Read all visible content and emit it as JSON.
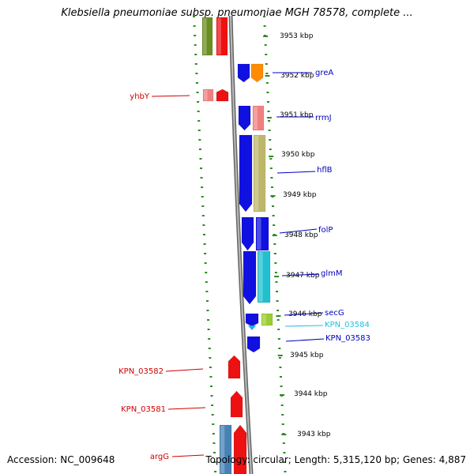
{
  "title": "Klebsiella pneumoniae subsp. pneumoniae MGH 78578, complete ...",
  "footer": {
    "accession": "Accession: NC_009648",
    "summary": "Topology: circular; Length: 5,315,120 bp; Genes: 4,887"
  },
  "colors": {
    "background": "#ffffff",
    "backbone": "#888888",
    "tick": "#2e8b22",
    "label_blue": "#0000c0",
    "label_red": "#d00000",
    "label_cyan": "#20c0e0"
  },
  "scale_labels": [
    "3953 kbp",
    "3952 kbp",
    "3951 kbp",
    "3950 kbp",
    "3949 kbp",
    "3948 kbp",
    "3947 kbp",
    "3946 kbp",
    "3945 kbp",
    "3944 kbp",
    "3943 kbp"
  ],
  "genes_right": [
    {
      "name": "greA",
      "color": "#0000c0"
    },
    {
      "name": "rrmJ",
      "color": "#0000c0"
    },
    {
      "name": "hflB",
      "color": "#0000c0"
    },
    {
      "name": "folP",
      "color": "#0000c0"
    },
    {
      "name": "glmM",
      "color": "#0000c0"
    },
    {
      "name": "secG",
      "color": "#0000c0"
    },
    {
      "name": "KPN_03584",
      "color": "#20c0e0"
    },
    {
      "name": "KPN_03583",
      "color": "#0000c0"
    }
  ],
  "genes_left": [
    {
      "name": "yhbY",
      "color": "#d00000"
    },
    {
      "name": "KPN_03582",
      "color": "#d00000"
    },
    {
      "name": "KPN_03581",
      "color": "#d00000"
    },
    {
      "name": "argG",
      "color": "#d00000"
    }
  ]
}
